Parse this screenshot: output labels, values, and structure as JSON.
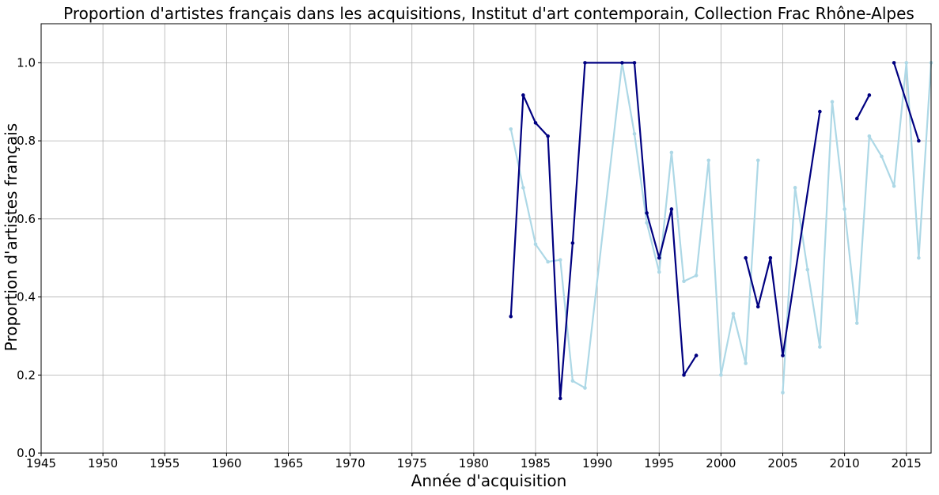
{
  "chart_data": {
    "type": "line",
    "title": "Proportion d'artistes français dans les acquisitions, Institut d'art contemporain, Collection Frac Rhône-Alpes",
    "xlabel": "Année d'acquisition",
    "ylabel": "Proportion d'artistes français",
    "xlim": [
      1945,
      2017
    ],
    "ylim": [
      0.0,
      1.1
    ],
    "xticks": [
      1945,
      1950,
      1955,
      1960,
      1965,
      1970,
      1975,
      1980,
      1985,
      1990,
      1995,
      2000,
      2005,
      2010,
      2015
    ],
    "yticks": [
      0.0,
      0.2,
      0.4,
      0.6,
      0.8,
      1.0
    ],
    "grid": true,
    "series": [
      {
        "color": "#add8e6",
        "points": [
          [
            1983,
            0.83
          ],
          [
            1984,
            0.68
          ],
          [
            1985,
            0.535
          ],
          [
            1986,
            0.49
          ],
          [
            1987,
            0.495
          ],
          [
            1988,
            0.185
          ],
          [
            1989,
            0.167
          ],
          [
            1992,
            1.0
          ],
          [
            1993,
            0.818
          ],
          [
            1994,
            0.59
          ],
          [
            1995,
            0.464
          ],
          [
            1996,
            0.77
          ],
          [
            1997,
            0.44
          ],
          [
            1998,
            0.455
          ],
          [
            1999,
            0.75
          ],
          [
            2000,
            0.2
          ],
          [
            2001,
            0.357
          ],
          [
            2002,
            0.23
          ],
          [
            2003,
            0.75
          ],
          null,
          [
            2005,
            0.155
          ],
          [
            2006,
            0.68
          ],
          [
            2007,
            0.47
          ],
          [
            2008,
            0.272
          ],
          [
            2009,
            0.9
          ],
          [
            2010,
            0.625
          ],
          [
            2011,
            0.333
          ],
          [
            2012,
            0.812
          ],
          [
            2013,
            0.76
          ],
          [
            2014,
            0.684
          ],
          [
            2015,
            1.0
          ],
          [
            2016,
            0.5
          ],
          [
            2017,
            1.0
          ]
        ]
      },
      {
        "color": "#000080",
        "points": [
          [
            1983,
            0.35
          ],
          [
            1984,
            0.917
          ],
          [
            1985,
            0.846
          ],
          [
            1986,
            0.812
          ],
          [
            1987,
            0.14
          ],
          [
            1988,
            0.538
          ],
          [
            1989,
            1.0
          ],
          [
            1992,
            1.0
          ],
          [
            1993,
            1.0
          ],
          [
            1994,
            0.615
          ],
          [
            1995,
            0.5
          ],
          [
            1996,
            0.625
          ],
          [
            1997,
            0.2
          ],
          [
            1998,
            0.25
          ],
          null,
          [
            2002,
            0.5
          ],
          [
            2003,
            0.375
          ],
          [
            2004,
            0.5
          ],
          [
            2005,
            0.25
          ],
          [
            2008,
            0.875
          ],
          null,
          [
            2011,
            0.857
          ],
          [
            2012,
            0.917
          ],
          null,
          [
            2014,
            1.0
          ],
          [
            2016,
            0.8
          ]
        ]
      }
    ]
  }
}
